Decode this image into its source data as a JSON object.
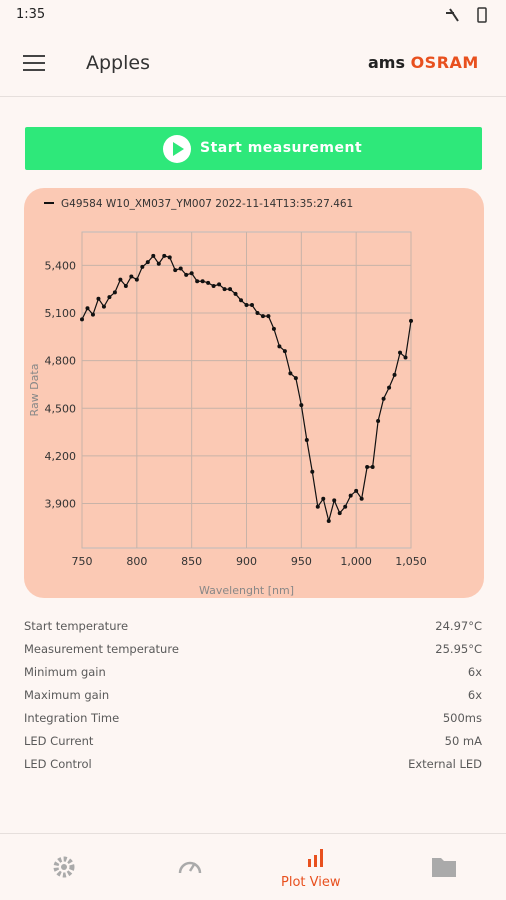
{
  "status_bar": {
    "time": "1:35"
  },
  "header": {
    "title": "Apples",
    "logo_left": "ams",
    "logo_right": "OSRAM"
  },
  "button": {
    "label": "Start measurement"
  },
  "chart_data": {
    "type": "line",
    "xlabel": "Wavelenght [nm]",
    "ylabel": "Raw Data",
    "x": [
      750,
      755,
      760,
      765,
      770,
      775,
      780,
      785,
      790,
      795,
      800,
      805,
      810,
      815,
      820,
      825,
      830,
      835,
      840,
      845,
      850,
      855,
      860,
      865,
      870,
      875,
      880,
      885,
      890,
      895,
      900,
      905,
      910,
      915,
      920,
      925,
      930,
      935,
      940,
      945,
      950,
      955,
      960,
      965,
      970,
      975,
      980,
      985,
      990,
      995,
      1000,
      1005,
      1010,
      1015,
      1020,
      1025,
      1030,
      1035,
      1040,
      1045,
      1050
    ],
    "series": [
      {
        "name": "G49584 W10_XM037_YM007 2022-11-14T13:35:27.461",
        "color": "#111111",
        "values": [
          5060,
          5130,
          5090,
          5190,
          5140,
          5200,
          5230,
          5310,
          5270,
          5330,
          5310,
          5390,
          5420,
          5460,
          5410,
          5460,
          5450,
          5370,
          5380,
          5340,
          5350,
          5300,
          5300,
          5290,
          5270,
          5280,
          5250,
          5250,
          5220,
          5180,
          5150,
          5150,
          5100,
          5080,
          5080,
          5000,
          4890,
          4860,
          4720,
          4690,
          4520,
          4300,
          4100,
          3880,
          3930,
          3790,
          3920,
          3840,
          3880,
          3950,
          3980,
          3930,
          4130,
          4130,
          4420,
          4560,
          4630,
          4710,
          4850,
          4820,
          5050
        ]
      }
    ],
    "xlim": [
      750,
      1050
    ],
    "ylim": [
      3620,
      5610
    ],
    "xticks": [
      750,
      800,
      850,
      900,
      950,
      {
        "value": 1000,
        "label": "1,000"
      },
      {
        "value": 1050,
        "label": "1,050"
      }
    ],
    "yticks": [
      {
        "value": 3900,
        "label": "3,900"
      },
      {
        "value": 4200,
        "label": "4,200"
      },
      {
        "value": 4500,
        "label": "4,500"
      },
      {
        "value": 4800,
        "label": "4,800"
      },
      {
        "value": 5100,
        "label": "5,100"
      },
      {
        "value": 5400,
        "label": "5,400"
      }
    ],
    "grid": true,
    "legend": "top-left"
  },
  "info": {
    "rows": [
      [
        "Start temperature",
        "24.97°C"
      ],
      [
        "Measurement temperature",
        "25.95°C"
      ],
      [
        "Minimum gain",
        "6x"
      ],
      [
        "Maximum gain",
        "6x"
      ],
      [
        "Integration Time",
        "500ms"
      ],
      [
        "LED Current",
        "50 mA"
      ],
      [
        "LED Control",
        "External LED"
      ]
    ]
  },
  "nav": {
    "active": "Plot View"
  }
}
